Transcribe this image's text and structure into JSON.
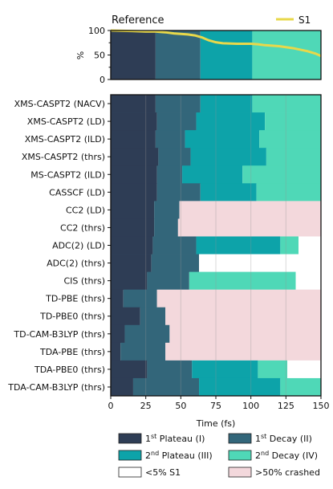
{
  "chart_data": [
    {
      "type": "line",
      "title": "Reference",
      "ylabel": "%",
      "xlim": [
        0,
        150
      ],
      "ylim": [
        0,
        100
      ],
      "yticks": [
        0,
        50,
        100
      ],
      "legend": {
        "label": "S1",
        "placement": "top-right"
      },
      "series": [
        {
          "name": "S1",
          "color": "#e8d84a",
          "points": [
            [
              0,
              100
            ],
            [
              15,
              99
            ],
            [
              25,
              98
            ],
            [
              32,
              98
            ],
            [
              36,
              97
            ],
            [
              40,
              96
            ],
            [
              45,
              94
            ],
            [
              50,
              93
            ],
            [
              55,
              92
            ],
            [
              60,
              90
            ],
            [
              65,
              86
            ],
            [
              70,
              80
            ],
            [
              75,
              76
            ],
            [
              80,
              74
            ],
            [
              90,
              73
            ],
            [
              100,
              73
            ],
            [
              105,
              72
            ],
            [
              110,
              70
            ],
            [
              120,
              68
            ],
            [
              130,
              64
            ],
            [
              140,
              58
            ],
            [
              146,
              53
            ],
            [
              150,
              48
            ]
          ]
        }
      ],
      "phase_bands": [
        {
          "phase": "plateau1",
          "start": 0,
          "end": 32
        },
        {
          "phase": "decay1",
          "start": 32,
          "end": 64
        },
        {
          "phase": "plateau2",
          "start": 64,
          "end": 101
        },
        {
          "phase": "decay2",
          "start": 101,
          "end": 150
        }
      ]
    },
    {
      "type": "bar",
      "orientation": "horizontal-stacked",
      "xlabel": "Time (fs)",
      "xlim": [
        0,
        150
      ],
      "xticks": [
        0,
        25,
        50,
        75,
        100,
        125,
        150
      ],
      "grid": true,
      "rows": [
        {
          "label": "XMS-CASPT2 (NACV)",
          "segments": [
            [
              "plateau1",
              0,
              32
            ],
            [
              "decay1",
              32,
              64
            ],
            [
              "plateau2",
              64,
              101
            ],
            [
              "decay2",
              101,
              150
            ]
          ]
        },
        {
          "label": "XMS-CASPT2 (LD)",
          "segments": [
            [
              "plateau1",
              0,
              33
            ],
            [
              "decay1",
              33,
              61
            ],
            [
              "plateau2",
              61,
              110
            ],
            [
              "decay2",
              110,
              150
            ]
          ]
        },
        {
          "label": "XMS-CASPT2 (lLD)",
          "segments": [
            [
              "plateau1",
              0,
              32
            ],
            [
              "decay1",
              32,
              53
            ],
            [
              "plateau2",
              53,
              106
            ],
            [
              "decay2",
              106,
              150
            ]
          ]
        },
        {
          "label": "XMS-CASPT2 (thrs)",
          "segments": [
            [
              "plateau1",
              0,
              34
            ],
            [
              "decay1",
              34,
              57
            ],
            [
              "plateau2",
              57,
              111
            ],
            [
              "decay2",
              111,
              150
            ]
          ]
        },
        {
          "label": "MS-CASPT2 (lLD)",
          "segments": [
            [
              "plateau1",
              0,
              33
            ],
            [
              "decay1",
              33,
              51
            ],
            [
              "plateau2",
              51,
              94
            ],
            [
              "decay2",
              94,
              150
            ]
          ]
        },
        {
          "label": "CASSCF (LD)",
          "segments": [
            [
              "plateau1",
              0,
              33
            ],
            [
              "decay1",
              33,
              64
            ],
            [
              "plateau2",
              64,
              104
            ],
            [
              "decay2",
              104,
              150
            ]
          ]
        },
        {
          "label": "CC2 (LD)",
          "segments": [
            [
              "plateau1",
              0,
              31
            ],
            [
              "decay1",
              31,
              49
            ],
            [
              "crashed",
              49,
              150
            ]
          ]
        },
        {
          "label": "CC2 (thrs)",
          "segments": [
            [
              "plateau1",
              0,
              31
            ],
            [
              "decay1",
              31,
              48
            ],
            [
              "crashed",
              48,
              150
            ]
          ]
        },
        {
          "label": "ADC(2) (LD)",
          "segments": [
            [
              "plateau1",
              0,
              30
            ],
            [
              "decay1",
              30,
              61
            ],
            [
              "plateau2",
              61,
              121
            ],
            [
              "decay2",
              121,
              134
            ],
            [
              "lowS1",
              134,
              150
            ]
          ]
        },
        {
          "label": "ADC(2) (thrs)",
          "segments": [
            [
              "plateau1",
              0,
              29
            ],
            [
              "decay1",
              29,
              63
            ],
            [
              "lowS1",
              63,
              150
            ]
          ]
        },
        {
          "label": "CIS (thrs)",
          "segments": [
            [
              "plateau1",
              0,
              26
            ],
            [
              "decay1",
              26,
              56
            ],
            [
              "decay2",
              56,
              132
            ],
            [
              "lowS1",
              132,
              150
            ]
          ]
        },
        {
          "label": "TD-PBE (thrs)",
          "segments": [
            [
              "plateau1",
              0,
              9
            ],
            [
              "decay1",
              9,
              33
            ],
            [
              "crashed",
              33,
              150
            ]
          ]
        },
        {
          "label": "TD-PBE0 (thrs)",
          "segments": [
            [
              "plateau1",
              0,
              21
            ],
            [
              "decay1",
              21,
              39
            ],
            [
              "crashed",
              39,
              150
            ]
          ]
        },
        {
          "label": "TD-CAM-B3LYP (thrs)",
          "segments": [
            [
              "plateau1",
              0,
              10
            ],
            [
              "decay1",
              10,
              42
            ],
            [
              "crashed",
              42,
              150
            ]
          ]
        },
        {
          "label": "TDA-PBE (thrs)",
          "segments": [
            [
              "plateau1",
              0,
              7
            ],
            [
              "decay1",
              7,
              39
            ],
            [
              "crashed",
              39,
              150
            ]
          ]
        },
        {
          "label": "TDA-PBE0 (thrs)",
          "segments": [
            [
              "plateau1",
              0,
              26
            ],
            [
              "decay1",
              26,
              58
            ],
            [
              "plateau2",
              58,
              105
            ],
            [
              "decay2",
              105,
              126
            ],
            [
              "lowS1",
              126,
              150
            ]
          ]
        },
        {
          "label": "TDA-CAM-B3LYP (thrs)",
          "segments": [
            [
              "plateau1",
              0,
              16
            ],
            [
              "decay1",
              16,
              63
            ],
            [
              "plateau2",
              63,
              121
            ],
            [
              "decay2",
              121,
              150
            ]
          ]
        }
      ]
    }
  ],
  "legend": [
    {
      "key": "plateau1",
      "ord": "1",
      "sup": "st",
      "text": " Plateau (I)",
      "color": "#2e3d55"
    },
    {
      "key": "decay1",
      "ord": "1",
      "sup": "st",
      "text": " Decay (II)",
      "color": "#33667a"
    },
    {
      "key": "plateau2",
      "ord": "2",
      "sup": "nd",
      "text": " Plateau (III)",
      "color": "#0da3a9"
    },
    {
      "key": "decay2",
      "ord": "2",
      "sup": "nd",
      "text": " Decay (IV)",
      "color": "#4fd8b7"
    },
    {
      "key": "lowS1",
      "ord": "",
      "sup": "",
      "text": "<5% S1",
      "color": "#ffffff"
    },
    {
      "key": "crashed",
      "ord": "",
      "sup": "",
      "text": ">50% crashed",
      "color": "#f3d8dc"
    }
  ]
}
